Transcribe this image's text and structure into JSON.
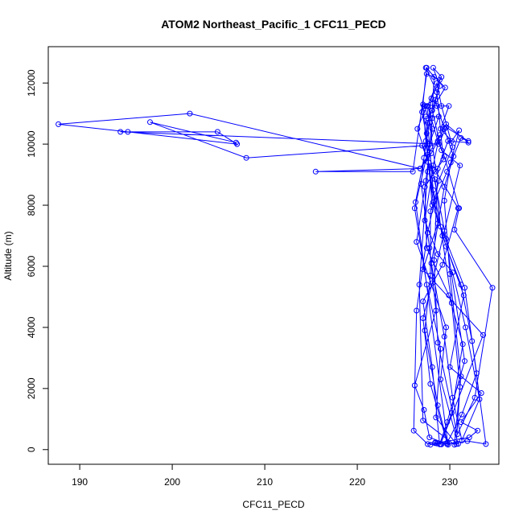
{
  "chart_data": {
    "type": "line",
    "title": "ATOM2 Northeast_Pacific_1 CFC11_PECD",
    "xlabel": "CFC11_PECD",
    "ylabel": "Altitude (m)",
    "xlim": [
      186.6,
      235.3
    ],
    "ylim": [
      -480,
      13190
    ],
    "xticks": [
      190,
      200,
      210,
      220,
      230
    ],
    "yticks": [
      0,
      2000,
      4000,
      6000,
      8000,
      10000,
      12000
    ],
    "grid": false,
    "legend": "none",
    "marker": "open-circle",
    "colors": {
      "series": "#0000ff",
      "frame": "#000000"
    },
    "series": [
      {
        "points": [
          [
            227.9,
            160
          ],
          [
            228.6,
            200
          ],
          [
            229.1,
            170
          ],
          [
            228.4,
            210
          ],
          [
            232.1,
            400
          ],
          [
            233.0,
            620
          ],
          [
            231.2,
            900
          ],
          [
            233.4,
            1850
          ],
          [
            230.0,
            2700
          ],
          [
            231.5,
            5050
          ],
          [
            229.2,
            7000
          ],
          [
            228.2,
            8500
          ],
          [
            227.6,
            10700
          ],
          [
            228.9,
            11900
          ],
          [
            228.2,
            12500
          ],
          [
            229.1,
            12200
          ],
          [
            228.0,
            11500
          ],
          [
            227.5,
            10350
          ],
          [
            226.9,
            8700
          ],
          [
            227.8,
            6600
          ],
          [
            228.5,
            4550
          ],
          [
            226.2,
            2100
          ],
          [
            227.2,
            1300
          ],
          [
            227.8,
            400
          ],
          [
            229.7,
            180
          ],
          [
            231.9,
            280
          ],
          [
            233.9,
            180
          ],
          [
            232.4,
            3550
          ],
          [
            231.2,
            5400
          ],
          [
            229.6,
            6650
          ],
          [
            228.2,
            8100
          ],
          [
            227.4,
            10100
          ],
          [
            227.1,
            11300
          ],
          [
            228.6,
            11250
          ],
          [
            229.9,
            11250
          ],
          [
            229.0,
            10500
          ],
          [
            230.2,
            10100
          ],
          [
            231.0,
            10450
          ],
          [
            230.1,
            9400
          ],
          [
            229.4,
            8150
          ],
          [
            230.0,
            5750
          ],
          [
            231.2,
            2400
          ],
          [
            230.5,
            160
          ],
          [
            227.1,
            950
          ],
          [
            226.7,
            5400
          ],
          [
            227.6,
            9100
          ],
          [
            228.1,
            10850
          ],
          [
            228.9,
            12100
          ],
          [
            227.5,
            12300
          ],
          [
            226.0,
            9100
          ],
          [
            215.5,
            9100
          ],
          [
            226.8,
            9200
          ],
          [
            228.0,
            9700
          ],
          [
            229.6,
            10650
          ],
          [
            232.0,
            10050
          ],
          [
            229.8,
            10100
          ],
          [
            228.7,
            9200
          ],
          [
            228.3,
            6200
          ],
          [
            228.7,
            3500
          ],
          [
            230.8,
            500
          ],
          [
            232.7,
            1700
          ],
          [
            234.6,
            5300
          ],
          [
            230.5,
            7200
          ],
          [
            231.0,
            7900
          ],
          [
            229.4,
            9600
          ],
          [
            228.7,
            10100
          ],
          [
            227.6,
            11250
          ],
          [
            228.6,
            12000
          ],
          [
            229.1,
            11250
          ],
          [
            230.3,
            9900
          ],
          [
            228.8,
            8800
          ],
          [
            227.6,
            7100
          ],
          [
            226.4,
            4550
          ],
          [
            226.1,
            620
          ],
          [
            227.6,
            180
          ],
          [
            228.4,
            230
          ],
          [
            230.9,
            190
          ],
          [
            229.0,
            2300
          ],
          [
            229.6,
            4000
          ],
          [
            226.4,
            6800
          ],
          [
            227.4,
            8800
          ],
          [
            228.1,
            10500
          ],
          [
            227.2,
            11250
          ],
          [
            228.4,
            11450
          ],
          [
            229.4,
            10500
          ],
          [
            230.4,
            9600
          ],
          [
            229.4,
            8600
          ],
          [
            228.0,
            6100
          ],
          [
            229.4,
            3700
          ],
          [
            230.3,
            1700
          ],
          [
            231.3,
            300
          ],
          [
            233.2,
            1650
          ],
          [
            231.7,
            4000
          ],
          [
            230.3,
            5800
          ],
          [
            228.7,
            6400
          ],
          [
            227.3,
            7500
          ],
          [
            228.2,
            9300
          ],
          [
            228.9,
            10300
          ],
          [
            226.8,
            9200
          ],
          [
            201.9,
            11000
          ],
          [
            187.7,
            10650
          ],
          [
            195.2,
            10400
          ],
          [
            207.0,
            10000
          ],
          [
            204.9,
            10400
          ],
          [
            194.4,
            10400
          ],
          [
            228.8,
            10000
          ],
          [
            229.6,
            10550
          ],
          [
            232.0,
            10100
          ],
          [
            231.2,
            10200
          ],
          [
            229.7,
            9100
          ],
          [
            227.9,
            7800
          ],
          [
            227.9,
            5700
          ],
          [
            227.3,
            3900
          ],
          [
            228.7,
            1450
          ],
          [
            229.8,
            160
          ],
          [
            226.3,
            8100
          ],
          [
            227.2,
            9550
          ],
          [
            228.0,
            11100
          ],
          [
            229.5,
            11850
          ],
          [
            227.4,
            12500
          ],
          [
            228.6,
            11700
          ],
          [
            229.3,
            9500
          ],
          [
            227.3,
            8600
          ],
          [
            227.5,
            6600
          ],
          [
            229.9,
            5050
          ],
          [
            231.4,
            3450
          ],
          [
            230.2,
            1200
          ],
          [
            229.0,
            180
          ],
          [
            233.6,
            3750
          ],
          [
            227.1,
            5900
          ],
          [
            228.7,
            7400
          ],
          [
            227.7,
            9400
          ],
          [
            226.5,
            10500
          ],
          [
            227.5,
            11250
          ],
          [
            227.8,
            10700
          ],
          [
            228.5,
            9100
          ],
          [
            230.9,
            7900
          ],
          [
            229.2,
            6050
          ],
          [
            227.1,
            4850
          ],
          [
            228.1,
            2700
          ],
          [
            228.9,
            170
          ],
          [
            229.7,
            900
          ],
          [
            231.6,
            2900
          ],
          [
            229.6,
            6900
          ],
          [
            228.1,
            9200
          ],
          [
            227.0,
            11050
          ],
          [
            227.5,
            12500
          ],
          [
            228.3,
            12200
          ],
          [
            228.1,
            11100
          ],
          [
            229.1,
            9800
          ],
          [
            231.1,
            9300
          ],
          [
            229.4,
            7150
          ],
          [
            228.1,
            5450
          ],
          [
            227.1,
            4300
          ],
          [
            227.9,
            2150
          ],
          [
            229.7,
            220
          ],
          [
            231.3,
            1150
          ],
          [
            232.9,
            2500
          ],
          [
            231.6,
            5300
          ],
          [
            228.1,
            8000
          ],
          [
            227.6,
            9650
          ],
          [
            227.4,
            10900
          ],
          [
            228.8,
            10900
          ],
          [
            227.8,
            10000
          ],
          [
            226.2,
            7900
          ],
          [
            227.5,
            5400
          ],
          [
            229.0,
            3300
          ],
          [
            228.5,
            1050
          ],
          [
            230.7,
            180
          ],
          [
            231.1,
            2050
          ],
          [
            230.2,
            4800
          ],
          [
            229.0,
            7300
          ],
          [
            228.4,
            8850
          ],
          [
            227.0,
            9950
          ],
          [
            208.0,
            9550
          ],
          [
            197.6,
            10720
          ],
          [
            206.9,
            10050
          ]
        ]
      }
    ]
  }
}
